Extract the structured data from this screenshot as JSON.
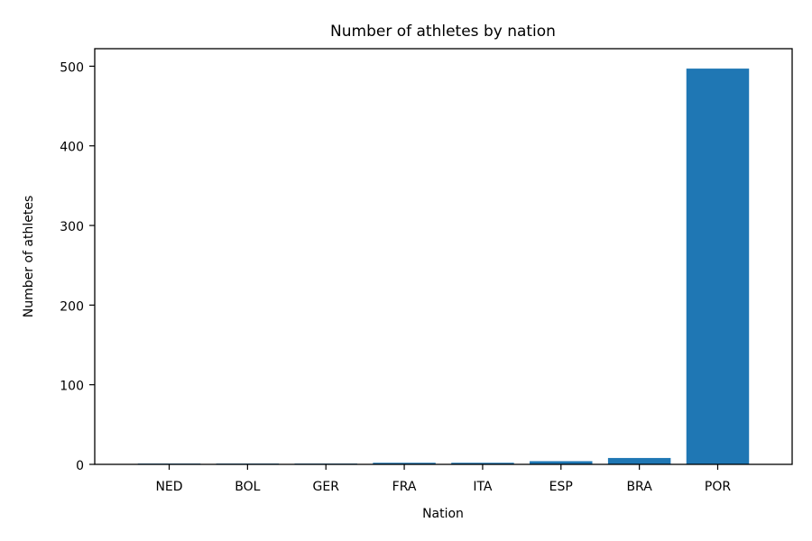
{
  "chart_data": {
    "type": "bar",
    "title": "Number of athletes by nation",
    "xlabel": "Nation",
    "ylabel": "Number of athletes",
    "categories": [
      "NED",
      "BOL",
      "GER",
      "FRA",
      "ITA",
      "ESP",
      "BRA",
      "POR"
    ],
    "values": [
      1,
      1,
      1,
      2,
      2,
      4,
      8,
      497
    ],
    "ylim": [
      0,
      522
    ],
    "yticks": [
      0,
      100,
      200,
      300,
      400,
      500
    ],
    "grid": false,
    "bar_color": "#1f77b4"
  }
}
